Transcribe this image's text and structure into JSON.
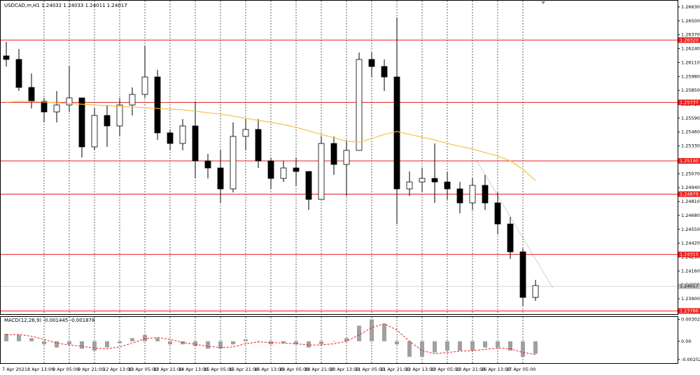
{
  "chart_data": {
    "type": "candlestick",
    "title": "USDCAD,m,H1  1.24032 1.24033 1.24011 1.24017",
    "categories": [
      "7 Apr 2021",
      null,
      "8 Apr 13:00",
      null,
      "9 Apr 05:00",
      null,
      "9 Apr 21:00",
      null,
      "12 Apr 13:00",
      null,
      "13 Apr 05:00",
      null,
      "13 Apr 21:00",
      null,
      "14 Apr 13:00",
      null,
      "15 Apr 05:00",
      null,
      "15 Apr 21:00",
      null,
      "16 Apr 13:00",
      null,
      "19 Apr 05:00",
      null,
      "19 Apr 21:00",
      null,
      "20 Apr 13:00",
      null,
      "21 Apr 05:00",
      null,
      "21 Apr 21:00",
      null,
      "22 Apr 13:00",
      null,
      "23 Apr 05:00",
      null,
      "23 Apr 21:00",
      null,
      "26 Apr 13:00",
      null,
      "27 Apr 05:00",
      null,
      null
    ],
    "open": [
      1.26172,
      1.26139,
      1.25877,
      1.25746,
      1.25648,
      1.25713,
      1.25779,
      1.25321,
      1.25615,
      1.25517,
      1.25713,
      1.25812,
      1.25975,
      1.25452,
      1.25353,
      1.25517,
      1.2519,
      1.25124,
      1.24928,
      1.25419,
      1.25484,
      1.2519,
      1.25026,
      1.25124,
      1.25091,
      1.2483,
      1.25353,
      1.25157,
      1.25288,
      1.26139,
      1.26073,
      1.25975,
      1.24928,
      1.24993,
      1.25026,
      1.24993,
      1.24928,
      1.24797,
      1.24961,
      1.24797,
      1.246,
      1.24339,
      1.23913
    ],
    "high": [
      1.26303,
      1.26237,
      1.26008,
      1.25779,
      1.25844,
      1.26073,
      1.25779,
      1.25681,
      1.25713,
      1.25779,
      1.25877,
      1.2627,
      1.26041,
      1.25484,
      1.25582,
      1.25746,
      1.25255,
      1.25288,
      1.2555,
      1.25582,
      1.25582,
      1.25222,
      1.2519,
      1.25222,
      1.25091,
      1.25419,
      1.25419,
      1.25386,
      1.26204,
      1.26204,
      1.26139,
      1.26532,
      1.25091,
      1.25124,
      1.25353,
      1.25091,
      1.24993,
      1.25026,
      1.25059,
      1.24895,
      1.24665,
      1.24371,
      1.24077
    ],
    "low": [
      1.26073,
      1.25844,
      1.25681,
      1.2555,
      1.2555,
      1.25648,
      1.25222,
      1.25288,
      1.25321,
      1.25419,
      1.25615,
      1.25779,
      1.25386,
      1.25288,
      1.25288,
      1.25026,
      1.25026,
      1.24797,
      1.24895,
      1.25288,
      1.25124,
      1.24928,
      1.24993,
      1.24961,
      1.24731,
      1.2483,
      1.25059,
      1.24862,
      1.25288,
      1.25975,
      1.25844,
      1.246,
      1.24862,
      1.24895,
      1.24797,
      1.2483,
      1.24699,
      1.24731,
      1.24731,
      1.24502,
      1.24273,
      1.23835,
      1.2388
    ],
    "close": [
      1.26139,
      1.25877,
      1.25746,
      1.25648,
      1.25713,
      1.25779,
      1.25321,
      1.25615,
      1.25517,
      1.25713,
      1.25812,
      1.25975,
      1.25452,
      1.25353,
      1.25517,
      1.2519,
      1.25124,
      1.24928,
      1.25419,
      1.25484,
      1.2519,
      1.25026,
      1.25124,
      1.25091,
      1.2483,
      1.25353,
      1.25157,
      1.25288,
      1.26139,
      1.26073,
      1.25975,
      1.24928,
      1.24993,
      1.25026,
      1.24993,
      1.24928,
      1.24797,
      1.24961,
      1.24797,
      1.246,
      1.24339,
      1.23913,
      1.24024
    ],
    "ma": {
      "color": "#f5c242",
      "values": [
        1.2574,
        1.25746,
        1.25746,
        1.2574,
        1.25733,
        1.25727,
        1.2572,
        1.25713,
        1.25707,
        1.257,
        1.25694,
        1.25687,
        1.25681,
        1.25674,
        1.25668,
        1.25655,
        1.25641,
        1.25628,
        1.25609,
        1.25589,
        1.25569,
        1.2555,
        1.2553,
        1.25504,
        1.25471,
        1.25438,
        1.25406,
        1.25373,
        1.25366,
        1.25399,
        1.25438,
        1.25465,
        1.25438,
        1.25412,
        1.25386,
        1.25353,
        1.25327,
        1.25301,
        1.25268,
        1.25236,
        1.2519,
        1.25111,
        1.25006
      ]
    },
    "ylim": [
      1.2375,
      1.26695
    ],
    "yticks": [
      {
        "value": 1.239,
        "label": "1.23900"
      },
      {
        "value": 1.2403,
        "label": "1.24030"
      },
      {
        "value": 1.2416,
        "label": "1.24160"
      },
      {
        "value": 1.2429,
        "label": "1.24290"
      },
      {
        "value": 1.2442,
        "label": "1.24420"
      },
      {
        "value": 1.2455,
        "label": "1.24550"
      },
      {
        "value": 1.2468,
        "label": "1.24680"
      },
      {
        "value": 1.2481,
        "label": "1.24810"
      },
      {
        "value": 1.2494,
        "label": "1.24940"
      },
      {
        "value": 1.2507,
        "label": "1.25070"
      },
      {
        "value": 1.252,
        "label": "1.25200"
      },
      {
        "value": 1.2533,
        "label": "1.25330"
      },
      {
        "value": 1.2546,
        "label": "1.25460"
      },
      {
        "value": 1.2559,
        "label": "1.25590"
      },
      {
        "value": 1.2572,
        "label": "1.25720"
      },
      {
        "value": 1.2585,
        "label": "1.25850"
      },
      {
        "value": 1.2598,
        "label": "1.25980"
      },
      {
        "value": 1.2611,
        "label": "1.26110"
      },
      {
        "value": 1.2624,
        "label": "1.26240"
      },
      {
        "value": 1.2637,
        "label": "1.26370"
      },
      {
        "value": 1.265,
        "label": "1.26500"
      },
      {
        "value": 1.2663,
        "label": "1.26630"
      }
    ],
    "levels": [
      {
        "value": 1.2632,
        "label": "1.26320"
      },
      1.25737,
      {
        "value": 1.2519,
        "label": "1.25190"
      },
      1.24879,
      1.24315,
      1.23786
    ],
    "level_color": "#e8201c",
    "current_price": 1.24017,
    "macd": {
      "title": "MACD(12,26,9) -0.001445 -0.001878",
      "ylim": [
        -0.00303,
        0.00337
      ],
      "yticks": [
        {
          "value": 0.003021,
          "label": "0.003021"
        },
        {
          "value": 0,
          "label": "0.00"
        },
        {
          "value": -0.002521,
          "label": "-0.002521"
        }
      ],
      "histogram": [
        0.00104,
        0.00087,
        0.00043,
        -0.00043,
        -0.00087,
        -0.00043,
        -0.00104,
        -0.0013,
        -0.00087,
        -0.00026,
        0.00043,
        0.00087,
        0.00043,
        -0.00043,
        -0.00043,
        -0.00069,
        -0.00104,
        -0.00104,
        -0.00043,
        0.00026,
        0,
        -0.00043,
        -0.00026,
        -0.00043,
        -0.00087,
        -0.00043,
        0,
        0.00043,
        0.00216,
        0.00303,
        0.00242,
        -0.00043,
        -0.00216,
        -0.00216,
        -0.00156,
        -0.0013,
        -0.0013,
        -0.0013,
        -0.00087,
        -0.00087,
        -0.0013,
        -0.00216,
        -0.00173
      ],
      "signal": {
        "color": "#e8201c",
        "values": [
          0.00087,
          0.00095,
          0.00069,
          0.00026,
          -0.00026,
          -0.00052,
          -0.00069,
          -0.00095,
          -0.00104,
          -0.00078,
          -0.00026,
          0.00035,
          0.00052,
          0.00026,
          -0.00017,
          -0.00043,
          -0.00069,
          -0.00087,
          -0.00078,
          -0.00035,
          -9e-05,
          -0.00017,
          -0.00026,
          -0.00035,
          -0.00052,
          -0.00052,
          -0.00035,
          0,
          0.00087,
          0.0019,
          0.00242,
          0.00156,
          0,
          -0.0013,
          -0.00173,
          -0.00156,
          -0.00138,
          -0.0013,
          -0.00112,
          -0.00095,
          -0.00104,
          -0.00156,
          -0.00182
        ]
      }
    }
  }
}
